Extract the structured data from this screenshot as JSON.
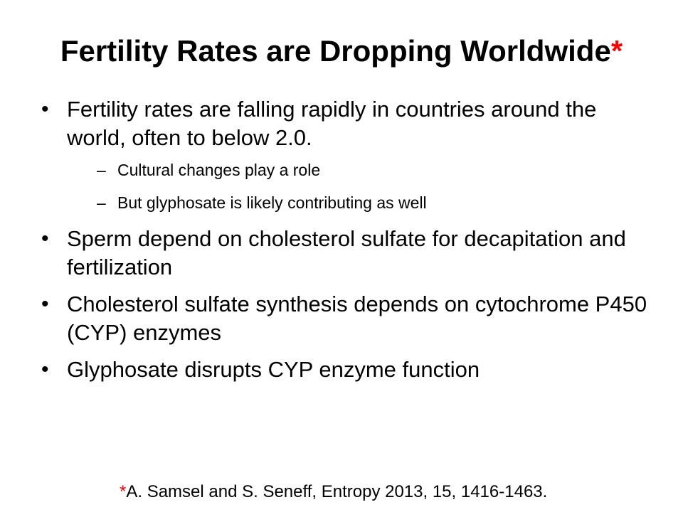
{
  "title": {
    "text": "Fertility Rates are Dropping Worldwide",
    "marker": "*"
  },
  "bullets": [
    {
      "text": "Fertility rates are falling rapidly in countries around the world, often to below 2.0.",
      "sub": [
        "Cultural changes play a role",
        "But glyphosate is likely contributing as well"
      ]
    },
    {
      "text": "Sperm depend on cholesterol sulfate for decapitation and fertilization"
    },
    {
      "text": "Cholesterol sulfate synthesis depends on cytochrome P450 (CYP) enzymes"
    },
    {
      "text": "Glyphosate disrupts CYP enzyme function"
    }
  ],
  "footnote": {
    "marker": "*",
    "text": "A. Samsel and S. Seneff, Entropy 2013, 15, 1416-1463."
  },
  "colors": {
    "accent": "#ff0000",
    "text": "#000000",
    "background": "#ffffff"
  }
}
